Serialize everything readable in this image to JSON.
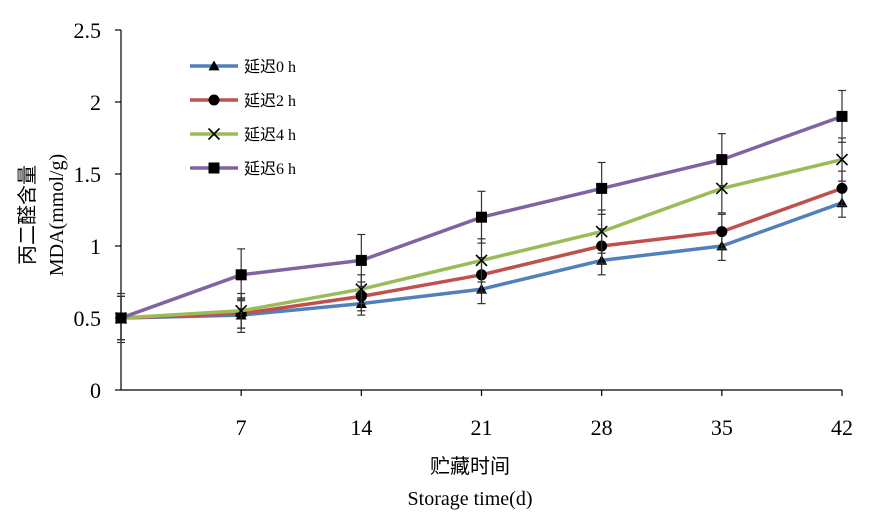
{
  "chart_data": {
    "type": "line",
    "title": "",
    "xlabel_cn": "贮藏时间",
    "xlabel_en": "Storage time(d)",
    "ylabel_cn": "丙二醛含量",
    "ylabel_en": "MDA(mmol/g)",
    "x": [
      0,
      7,
      14,
      21,
      28,
      35,
      42
    ],
    "x_tick_labels": [
      "7",
      "14",
      "21",
      "28",
      "35",
      "42"
    ],
    "y_ticks": [
      "0",
      "0.5",
      "1",
      "1.5",
      "2",
      "2.5"
    ],
    "ylim": [
      0,
      2.5
    ],
    "legend_position": "top-left",
    "grid": false,
    "series": [
      {
        "name": "延迟0 h",
        "color": "#4f81bd",
        "marker": "triangle",
        "values": [
          0.5,
          0.52,
          0.6,
          0.7,
          0.9,
          1.0,
          1.3
        ],
        "errors": [
          0.17,
          0.12,
          0.08,
          0.1,
          0.1,
          0.1,
          0.1
        ]
      },
      {
        "name": "延迟2 h",
        "color": "#c0504d",
        "marker": "circle",
        "values": [
          0.5,
          0.53,
          0.65,
          0.8,
          1.0,
          1.1,
          1.4
        ],
        "errors": [
          0.15,
          0.1,
          0.1,
          0.12,
          0.12,
          0.12,
          0.12
        ]
      },
      {
        "name": "延迟4 h",
        "color": "#9bbb59",
        "marker": "x",
        "values": [
          0.5,
          0.55,
          0.7,
          0.9,
          1.1,
          1.4,
          1.6
        ],
        "errors": [
          0.15,
          0.12,
          0.1,
          0.15,
          0.15,
          0.17,
          0.15
        ]
      },
      {
        "name": "延迟6 h",
        "color": "#8064a2",
        "marker": "square",
        "values": [
          0.5,
          0.8,
          0.9,
          1.2,
          1.4,
          1.6,
          1.9
        ],
        "errors": [
          0.15,
          0.18,
          0.18,
          0.18,
          0.18,
          0.18,
          0.18
        ]
      }
    ]
  }
}
